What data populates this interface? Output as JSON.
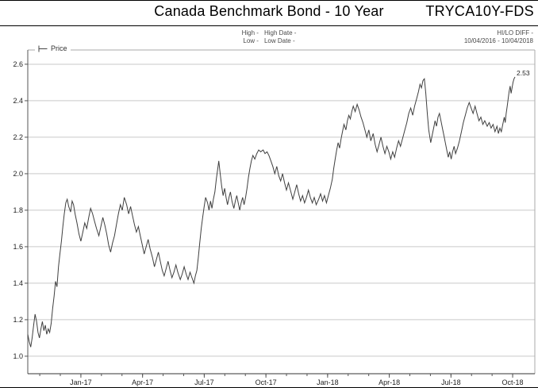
{
  "header": {
    "title": "Canada Benchmark Bond - 10 Year",
    "ticker": "TRYCA10Y-FDS",
    "high_row": {
      "stat": "High -",
      "date": "High Date -"
    },
    "low_row": {
      "stat": "Low -",
      "date": "Low Date -"
    },
    "hilo_diff_label": "HI/LO DIFF -",
    "date_range": "10/04/2016 - 10/04/2018"
  },
  "legend": {
    "series_label": "Price"
  },
  "colors": {
    "line": "#3f3f3f",
    "grid": "#c9c9c9",
    "axis": "#555555",
    "frame": "#aaaaaa",
    "tick_text": "#222222"
  },
  "chart_data": {
    "type": "line",
    "title": "Canada Benchmark Bond - 10 Year",
    "series_name": "Price",
    "xlabel": "",
    "ylabel": "Price",
    "grid": "horizontal",
    "legend_position": "top-left",
    "x_range": [
      "10/04/2016",
      "10/04/2018"
    ],
    "ylim": [
      0.904,
      2.678
    ],
    "yticks": [
      1.0,
      1.2,
      1.4,
      1.6,
      1.8,
      2.0,
      2.2,
      2.4,
      2.6
    ],
    "ytick_labels": [
      "1.0",
      "1.2",
      "1.4",
      "1.6",
      "1.8",
      "2.0",
      "2.2",
      "2.4",
      "2.6"
    ],
    "xlim_fraction": [
      0,
      1.0407
    ],
    "xticks_major": [
      {
        "f": 0.109,
        "label": "Jan-17"
      },
      {
        "f": 0.2356,
        "label": "Apr-17"
      },
      {
        "f": 0.3622,
        "label": "Jul-17"
      },
      {
        "f": 0.4888,
        "label": "Oct-17"
      },
      {
        "f": 0.6154,
        "label": "Jan-18"
      },
      {
        "f": 0.742,
        "label": "Apr-18"
      },
      {
        "f": 0.8686,
        "label": "Jul-18"
      },
      {
        "f": 0.9952,
        "label": "Oct-18"
      }
    ],
    "xticks_minor": [
      0.0246,
      0.0668,
      0.109,
      0.1512,
      0.1934,
      0.2356,
      0.2778,
      0.32,
      0.3622,
      0.4044,
      0.4466,
      0.4888,
      0.531,
      0.5732,
      0.6154,
      0.6576,
      0.6998,
      0.742,
      0.7842,
      0.8264,
      0.8686,
      0.9108,
      0.953,
      0.9952
    ],
    "last_value_label": "2.53",
    "points": [
      [
        0.0,
        1.12
      ],
      [
        0.003,
        1.08
      ],
      [
        0.006,
        1.05
      ],
      [
        0.009,
        1.1
      ],
      [
        0.012,
        1.17
      ],
      [
        0.015,
        1.23
      ],
      [
        0.018,
        1.19
      ],
      [
        0.021,
        1.13
      ],
      [
        0.024,
        1.1
      ],
      [
        0.027,
        1.15
      ],
      [
        0.03,
        1.19
      ],
      [
        0.033,
        1.14
      ],
      [
        0.036,
        1.17
      ],
      [
        0.039,
        1.12
      ],
      [
        0.042,
        1.15
      ],
      [
        0.045,
        1.13
      ],
      [
        0.048,
        1.18
      ],
      [
        0.051,
        1.26
      ],
      [
        0.054,
        1.33
      ],
      [
        0.057,
        1.41
      ],
      [
        0.06,
        1.38
      ],
      [
        0.063,
        1.49
      ],
      [
        0.066,
        1.56
      ],
      [
        0.069,
        1.63
      ],
      [
        0.072,
        1.71
      ],
      [
        0.075,
        1.78
      ],
      [
        0.078,
        1.84
      ],
      [
        0.081,
        1.86
      ],
      [
        0.084,
        1.82
      ],
      [
        0.088,
        1.79
      ],
      [
        0.091,
        1.85
      ],
      [
        0.094,
        1.83
      ],
      [
        0.097,
        1.78
      ],
      [
        0.101,
        1.73
      ],
      [
        0.105,
        1.67
      ],
      [
        0.109,
        1.63
      ],
      [
        0.113,
        1.68
      ],
      [
        0.117,
        1.73
      ],
      [
        0.121,
        1.7
      ],
      [
        0.125,
        1.76
      ],
      [
        0.129,
        1.81
      ],
      [
        0.133,
        1.78
      ],
      [
        0.137,
        1.74
      ],
      [
        0.141,
        1.7
      ],
      [
        0.146,
        1.66
      ],
      [
        0.15,
        1.71
      ],
      [
        0.154,
        1.76
      ],
      [
        0.158,
        1.72
      ],
      [
        0.162,
        1.67
      ],
      [
        0.166,
        1.61
      ],
      [
        0.17,
        1.57
      ],
      [
        0.174,
        1.62
      ],
      [
        0.178,
        1.66
      ],
      [
        0.182,
        1.72
      ],
      [
        0.186,
        1.78
      ],
      [
        0.19,
        1.83
      ],
      [
        0.194,
        1.8
      ],
      [
        0.198,
        1.87
      ],
      [
        0.203,
        1.83
      ],
      [
        0.207,
        1.78
      ],
      [
        0.211,
        1.82
      ],
      [
        0.215,
        1.77
      ],
      [
        0.219,
        1.72
      ],
      [
        0.223,
        1.68
      ],
      [
        0.227,
        1.71
      ],
      [
        0.231,
        1.66
      ],
      [
        0.235,
        1.61
      ],
      [
        0.239,
        1.56
      ],
      [
        0.243,
        1.6
      ],
      [
        0.247,
        1.64
      ],
      [
        0.251,
        1.59
      ],
      [
        0.256,
        1.54
      ],
      [
        0.26,
        1.49
      ],
      [
        0.264,
        1.53
      ],
      [
        0.268,
        1.57
      ],
      [
        0.272,
        1.52
      ],
      [
        0.276,
        1.47
      ],
      [
        0.28,
        1.44
      ],
      [
        0.284,
        1.48
      ],
      [
        0.288,
        1.52
      ],
      [
        0.292,
        1.47
      ],
      [
        0.296,
        1.43
      ],
      [
        0.3,
        1.46
      ],
      [
        0.304,
        1.5
      ],
      [
        0.308,
        1.46
      ],
      [
        0.313,
        1.42
      ],
      [
        0.317,
        1.45
      ],
      [
        0.321,
        1.49
      ],
      [
        0.325,
        1.45
      ],
      [
        0.329,
        1.42
      ],
      [
        0.333,
        1.46
      ],
      [
        0.337,
        1.43
      ],
      [
        0.341,
        1.4
      ],
      [
        0.344,
        1.44
      ],
      [
        0.347,
        1.47
      ],
      [
        0.35,
        1.54
      ],
      [
        0.353,
        1.62
      ],
      [
        0.356,
        1.7
      ],
      [
        0.359,
        1.76
      ],
      [
        0.362,
        1.82
      ],
      [
        0.365,
        1.87
      ],
      [
        0.369,
        1.84
      ],
      [
        0.372,
        1.8
      ],
      [
        0.375,
        1.85
      ],
      [
        0.378,
        1.81
      ],
      [
        0.381,
        1.86
      ],
      [
        0.384,
        1.9
      ],
      [
        0.387,
        1.97
      ],
      [
        0.39,
        2.03
      ],
      [
        0.392,
        2.07
      ],
      [
        0.395,
        2.0
      ],
      [
        0.398,
        1.93
      ],
      [
        0.401,
        1.88
      ],
      [
        0.404,
        1.92
      ],
      [
        0.407,
        1.87
      ],
      [
        0.41,
        1.83
      ],
      [
        0.413,
        1.87
      ],
      [
        0.416,
        1.9
      ],
      [
        0.419,
        1.85
      ],
      [
        0.423,
        1.81
      ],
      [
        0.426,
        1.85
      ],
      [
        0.429,
        1.88
      ],
      [
        0.432,
        1.84
      ],
      [
        0.435,
        1.8
      ],
      [
        0.438,
        1.84
      ],
      [
        0.441,
        1.87
      ],
      [
        0.444,
        1.83
      ],
      [
        0.447,
        1.87
      ],
      [
        0.45,
        1.92
      ],
      [
        0.453,
        1.98
      ],
      [
        0.456,
        2.03
      ],
      [
        0.459,
        2.07
      ],
      [
        0.462,
        2.1
      ],
      [
        0.466,
        2.08
      ],
      [
        0.47,
        2.11
      ],
      [
        0.474,
        2.13
      ],
      [
        0.478,
        2.12
      ],
      [
        0.483,
        2.13
      ],
      [
        0.487,
        2.11
      ],
      [
        0.491,
        2.12
      ],
      [
        0.495,
        2.1
      ],
      [
        0.499,
        2.07
      ],
      [
        0.503,
        2.04
      ],
      [
        0.507,
        2.0
      ],
      [
        0.511,
        2.04
      ],
      [
        0.515,
        1.99
      ],
      [
        0.519,
        1.96
      ],
      [
        0.523,
        2.0
      ],
      [
        0.527,
        1.95
      ],
      [
        0.531,
        1.91
      ],
      [
        0.535,
        1.95
      ],
      [
        0.54,
        1.9
      ],
      [
        0.544,
        1.86
      ],
      [
        0.548,
        1.9
      ],
      [
        0.552,
        1.94
      ],
      [
        0.556,
        1.89
      ],
      [
        0.56,
        1.85
      ],
      [
        0.564,
        1.88
      ],
      [
        0.568,
        1.84
      ],
      [
        0.572,
        1.87
      ],
      [
        0.576,
        1.91
      ],
      [
        0.58,
        1.87
      ],
      [
        0.584,
        1.84
      ],
      [
        0.588,
        1.87
      ],
      [
        0.592,
        1.83
      ],
      [
        0.597,
        1.86
      ],
      [
        0.601,
        1.89
      ],
      [
        0.605,
        1.85
      ],
      [
        0.609,
        1.88
      ],
      [
        0.613,
        1.84
      ],
      [
        0.617,
        1.88
      ],
      [
        0.621,
        1.92
      ],
      [
        0.625,
        1.97
      ],
      [
        0.628,
        2.03
      ],
      [
        0.631,
        2.08
      ],
      [
        0.634,
        2.13
      ],
      [
        0.637,
        2.17
      ],
      [
        0.64,
        2.14
      ],
      [
        0.643,
        2.19
      ],
      [
        0.646,
        2.23
      ],
      [
        0.649,
        2.27
      ],
      [
        0.653,
        2.24
      ],
      [
        0.656,
        2.29
      ],
      [
        0.659,
        2.32
      ],
      [
        0.662,
        2.3
      ],
      [
        0.665,
        2.34
      ],
      [
        0.668,
        2.37
      ],
      [
        0.672,
        2.34
      ],
      [
        0.676,
        2.38
      ],
      [
        0.68,
        2.35
      ],
      [
        0.684,
        2.31
      ],
      [
        0.688,
        2.28
      ],
      [
        0.692,
        2.24
      ],
      [
        0.696,
        2.2
      ],
      [
        0.7,
        2.24
      ],
      [
        0.704,
        2.18
      ],
      [
        0.709,
        2.22
      ],
      [
        0.713,
        2.16
      ],
      [
        0.717,
        2.12
      ],
      [
        0.721,
        2.16
      ],
      [
        0.725,
        2.2
      ],
      [
        0.729,
        2.15
      ],
      [
        0.733,
        2.11
      ],
      [
        0.737,
        2.15
      ],
      [
        0.741,
        2.12
      ],
      [
        0.745,
        2.08
      ],
      [
        0.749,
        2.12
      ],
      [
        0.753,
        2.09
      ],
      [
        0.757,
        2.14
      ],
      [
        0.761,
        2.18
      ],
      [
        0.765,
        2.15
      ],
      [
        0.77,
        2.2
      ],
      [
        0.774,
        2.24
      ],
      [
        0.778,
        2.28
      ],
      [
        0.782,
        2.33
      ],
      [
        0.786,
        2.36
      ],
      [
        0.79,
        2.32
      ],
      [
        0.794,
        2.37
      ],
      [
        0.798,
        2.41
      ],
      [
        0.802,
        2.45
      ],
      [
        0.805,
        2.49
      ],
      [
        0.808,
        2.47
      ],
      [
        0.811,
        2.51
      ],
      [
        0.814,
        2.52
      ],
      [
        0.817,
        2.44
      ],
      [
        0.82,
        2.33
      ],
      [
        0.823,
        2.24
      ],
      [
        0.827,
        2.17
      ],
      [
        0.83,
        2.21
      ],
      [
        0.833,
        2.25
      ],
      [
        0.836,
        2.29
      ],
      [
        0.839,
        2.26
      ],
      [
        0.842,
        2.31
      ],
      [
        0.845,
        2.33
      ],
      [
        0.848,
        2.29
      ],
      [
        0.851,
        2.25
      ],
      [
        0.854,
        2.21
      ],
      [
        0.857,
        2.17
      ],
      [
        0.86,
        2.13
      ],
      [
        0.863,
        2.09
      ],
      [
        0.866,
        2.12
      ],
      [
        0.869,
        2.08
      ],
      [
        0.872,
        2.12
      ],
      [
        0.875,
        2.15
      ],
      [
        0.878,
        2.11
      ],
      [
        0.882,
        2.14
      ],
      [
        0.886,
        2.18
      ],
      [
        0.89,
        2.23
      ],
      [
        0.894,
        2.28
      ],
      [
        0.898,
        2.32
      ],
      [
        0.902,
        2.36
      ],
      [
        0.906,
        2.39
      ],
      [
        0.91,
        2.36
      ],
      [
        0.914,
        2.33
      ],
      [
        0.918,
        2.37
      ],
      [
        0.922,
        2.33
      ],
      [
        0.926,
        2.29
      ],
      [
        0.93,
        2.31
      ],
      [
        0.934,
        2.27
      ],
      [
        0.938,
        2.29
      ],
      [
        0.943,
        2.26
      ],
      [
        0.947,
        2.28
      ],
      [
        0.951,
        2.25
      ],
      [
        0.955,
        2.27
      ],
      [
        0.959,
        2.23
      ],
      [
        0.963,
        2.26
      ],
      [
        0.966,
        2.22
      ],
      [
        0.969,
        2.25
      ],
      [
        0.972,
        2.23
      ],
      [
        0.975,
        2.27
      ],
      [
        0.978,
        2.31
      ],
      [
        0.98,
        2.28
      ],
      [
        0.982,
        2.33
      ],
      [
        0.984,
        2.37
      ],
      [
        0.986,
        2.41
      ],
      [
        0.988,
        2.45
      ],
      [
        0.99,
        2.48
      ],
      [
        0.992,
        2.44
      ],
      [
        0.994,
        2.47
      ],
      [
        0.996,
        2.5
      ],
      [
        0.998,
        2.52
      ],
      [
        1.0,
        2.53
      ]
    ]
  }
}
